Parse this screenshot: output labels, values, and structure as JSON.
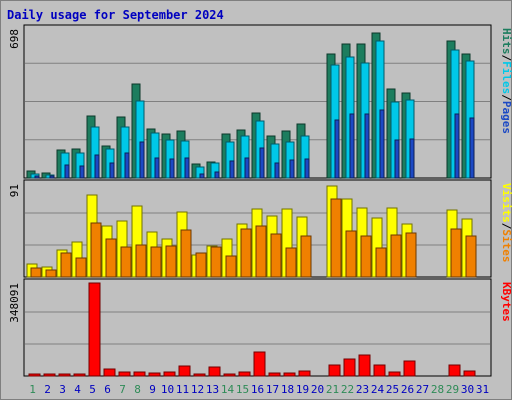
{
  "title": "Daily usage for September 2024",
  "colors": {
    "hits": "#1d7d5e",
    "files": "#00c8e8",
    "pages": "#1c49c4",
    "visits": "#ffff00",
    "sites": "#f08000",
    "kbytes": "#ff0000",
    "weekend_label": "#2e8b57",
    "weekday_label": "#0000c0"
  },
  "chart_data": [
    {
      "type": "bar",
      "panel": "hits-files-pages",
      "ytick": "698",
      "ylim": [
        0,
        698
      ],
      "side_label": [
        "Pages",
        "Files",
        "Hits"
      ],
      "categories": [
        "1",
        "2",
        "3",
        "4",
        "5",
        "6",
        "7",
        "8",
        "9",
        "10",
        "11",
        "12",
        "13",
        "14",
        "15",
        "16",
        "17",
        "18",
        "19",
        "20",
        "21",
        "22",
        "23",
        "24",
        "25",
        "26",
        "27",
        "28",
        "29",
        "30",
        "31"
      ],
      "weekend_days": [
        "1",
        "7",
        "8",
        "14",
        "15",
        "21",
        "22",
        "28",
        "29"
      ],
      "series": [
        {
          "name": "Hits",
          "values": [
            35,
            25,
            132,
            135,
            290,
            150,
            285,
            440,
            228,
            208,
            220,
            65,
            75,
            208,
            225,
            305,
            195,
            218,
            255,
            0,
            580,
            630,
            630,
            678,
            418,
            400,
            0,
            0,
            640,
            580,
            0
          ]
        },
        {
          "name": "Files",
          "values": [
            20,
            15,
            115,
            118,
            240,
            135,
            240,
            360,
            210,
            180,
            175,
            50,
            68,
            170,
            195,
            268,
            157,
            170,
            195,
            0,
            530,
            565,
            540,
            640,
            358,
            365,
            0,
            0,
            600,
            550,
            0
          ]
        },
        {
          "name": "Pages",
          "values": [
            10,
            8,
            60,
            55,
            110,
            72,
            115,
            170,
            95,
            88,
            92,
            20,
            28,
            80,
            96,
            140,
            68,
            84,
            90,
            0,
            270,
            300,
            300,
            320,
            180,
            182,
            0,
            0,
            300,
            280,
            0
          ]
        }
      ]
    },
    {
      "type": "bar",
      "panel": "visits-sites",
      "ytick": "91",
      "ylim": [
        0,
        91
      ],
      "side_label": [
        "Sites",
        "Visits"
      ],
      "series": [
        {
          "name": "Visits",
          "values": [
            13,
            10,
            26,
            34,
            80,
            50,
            55,
            69,
            44,
            37,
            64,
            22,
            30,
            37,
            52,
            67,
            60,
            67,
            59,
            0,
            89,
            76,
            68,
            58,
            68,
            52,
            0,
            0,
            66,
            57,
            0
          ]
        },
        {
          "name": "Sites",
          "values": [
            9,
            7,
            23,
            19,
            53,
            37,
            29,
            31,
            29,
            30,
            46,
            23,
            29,
            21,
            47,
            50,
            42,
            28,
            40,
            0,
            76,
            45,
            40,
            28,
            41,
            43,
            0,
            0,
            47,
            40,
            0
          ]
        }
      ]
    },
    {
      "type": "bar",
      "panel": "kbytes",
      "ytick": "348091",
      "ylim": [
        0,
        348091
      ],
      "side_label": [
        "KBytes"
      ],
      "series": [
        {
          "name": "KBytes",
          "values": [
            2000,
            2000,
            2000,
            2000,
            348091,
            25000,
            14000,
            14000,
            12000,
            14000,
            38000,
            8000,
            32000,
            8000,
            14000,
            88000,
            10000,
            12000,
            18000,
            0,
            42000,
            65000,
            80000,
            42000,
            14000,
            58000,
            0,
            0,
            42000,
            20000,
            0
          ]
        }
      ]
    }
  ]
}
